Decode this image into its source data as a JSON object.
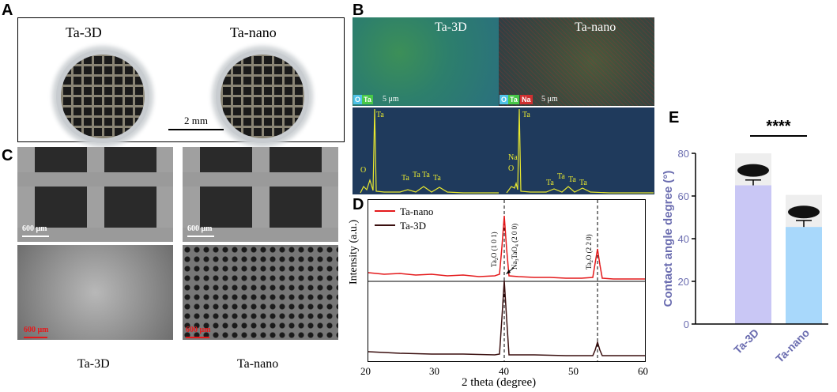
{
  "panels": {
    "A": {
      "letter": "A",
      "label_left": "Ta-3D",
      "label_right": "Ta-nano",
      "scale": "2 mm"
    },
    "B": {
      "letter": "B",
      "left_title": "Ta-3D",
      "right_title": "Ta-nano",
      "left_tags": [
        "O",
        "Ta"
      ],
      "right_tags": [
        "O",
        "Ta",
        "Na"
      ],
      "scale": "5 μm",
      "left_peaks": [
        "Ta",
        "O",
        "Ta",
        "Ta",
        "Ta",
        "Ta"
      ],
      "right_peaks": [
        "Ta",
        "Na",
        "O",
        "Ta",
        "Ta",
        "Ta",
        "Ta"
      ],
      "colors": {
        "O": "#4fc3e8",
        "Ta": "#48c848",
        "Na": "#d03030"
      }
    },
    "C": {
      "letter": "C",
      "scale_top": "600 μm",
      "scale_bottom": "600 μm",
      "label_left": "Ta-3D",
      "label_right": "Ta-nano"
    },
    "D": {
      "letter": "D",
      "ylabel": "Intensity (a.u.)",
      "xlabel": "2 theta (degree)",
      "xticks": [
        "20",
        "30",
        "40",
        "50",
        "60"
      ],
      "legend": [
        {
          "name": "Ta-nano",
          "color": "#e41a1c"
        },
        {
          "name": "Ta-3D",
          "color": "#3a0f0f"
        }
      ],
      "ann1_main": "Ta",
      "ann1_sub": "2",
      "ann1_rest": "O (1 0 1)",
      "ann2_main": "Na",
      "ann2_sub": "3",
      "ann2_mid": "TaO",
      "ann2_sub2": "4",
      "ann2_rest": " (2 0 0)",
      "ann3_main": "Ta",
      "ann3_sub": "2",
      "ann3_rest": "O (2 2 0)"
    },
    "E": {
      "letter": "E",
      "significance": "****"
    }
  },
  "chart_data": {
    "type": "bar",
    "categories": [
      "Ta-3D",
      "Ta-nano"
    ],
    "values": [
      65,
      45.5
    ],
    "errors": [
      2.5,
      3
    ],
    "ylabel": "Contact angle degree (°)",
    "ylim": [
      0,
      80
    ],
    "yticks": [
      "0",
      "20",
      "40",
      "60",
      "80"
    ],
    "colors": [
      "#c9c7f5",
      "#a8d8fb"
    ],
    "label_color": "#6b6db0"
  }
}
